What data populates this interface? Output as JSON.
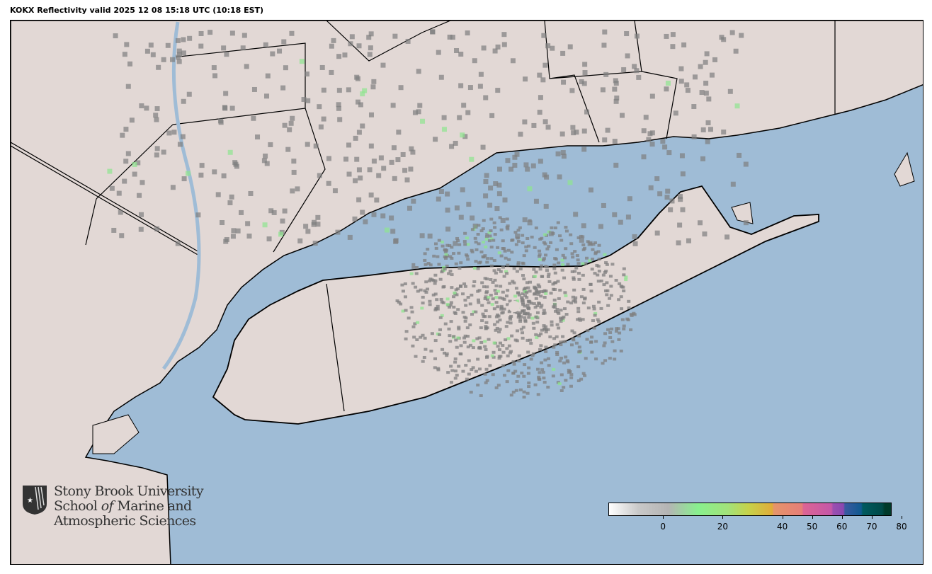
{
  "title": "KOKX Reflectivity valid 2025 12 08 15:18 UTC (10:18 EST)",
  "logo": {
    "line1": "Stony Brook University",
    "line2a": "School ",
    "line2b": "of",
    "line2c": " Marine and",
    "line3": "Atmospheric Sciences"
  },
  "colors": {
    "ocean": "#9fbcd6",
    "land": "#e2d8d5",
    "radar_weak": "#7f7f7f",
    "radar_green": "#8ee68e"
  },
  "colorbar": {
    "range": [
      -15,
      80
    ],
    "ticks": [
      {
        "v": 0,
        "label": "0"
      },
      {
        "v": 20,
        "label": "20"
      },
      {
        "v": 40,
        "label": "40"
      },
      {
        "v": 50,
        "label": "50"
      },
      {
        "v": 60,
        "label": "60"
      },
      {
        "v": 70,
        "label": "70"
      },
      {
        "v": 80,
        "label": "80"
      }
    ],
    "stops": [
      [
        -15,
        "#ffffff"
      ],
      [
        -5,
        "#c8c8c8"
      ],
      [
        5,
        "#b4b4b4"
      ],
      [
        15,
        "#88f08e"
      ],
      [
        25,
        "#a2e27a"
      ],
      [
        32,
        "#c6d24a"
      ],
      [
        40,
        "#e0ac3a"
      ],
      [
        40.5,
        "#e5956a"
      ],
      [
        50,
        "#e67e78"
      ],
      [
        50.5,
        "#dc6494"
      ],
      [
        60,
        "#c457a8"
      ],
      [
        60.5,
        "#9a4fb0"
      ],
      [
        64,
        "#8a48b0"
      ],
      [
        64.5,
        "#3a5aa0"
      ],
      [
        70,
        "#105a90"
      ],
      [
        70.5,
        "#005a60"
      ],
      [
        77,
        "#004a48"
      ],
      [
        78,
        "#003a2a"
      ],
      [
        80,
        "#003a2a"
      ]
    ]
  }
}
